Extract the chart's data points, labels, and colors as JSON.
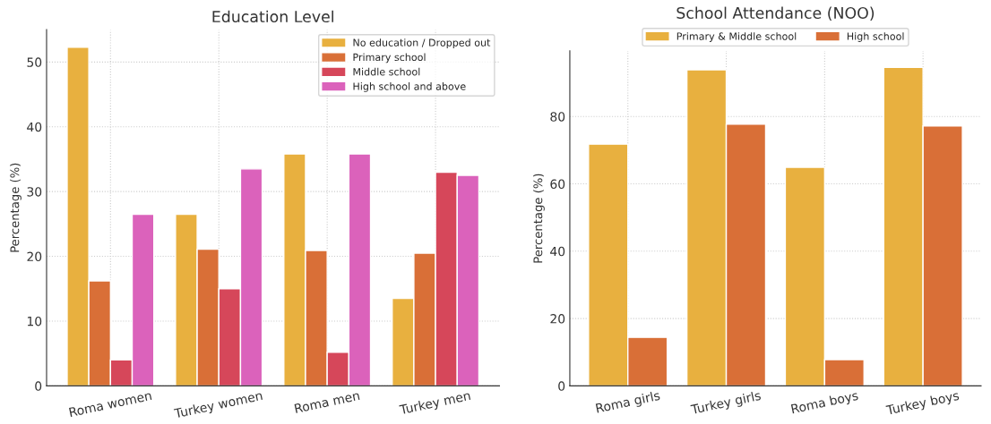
{
  "chart_data": [
    {
      "type": "bar",
      "title": "Education Level",
      "ylabel": "Percentage (%)",
      "categories": [
        "Roma women",
        "Turkey women",
        "Roma men",
        "Turkey men"
      ],
      "series": [
        {
          "name": "No education / Dropped out",
          "color": "#e8b03f",
          "values": [
            52.3,
            26.5,
            35.8,
            13.5
          ]
        },
        {
          "name": "Primary school",
          "color": "#d96f37",
          "values": [
            16.2,
            21.1,
            20.9,
            20.5
          ]
        },
        {
          "name": "Middle school",
          "color": "#d6475a",
          "values": [
            4.0,
            15.0,
            5.2,
            33.0
          ]
        },
        {
          "name": "High school and above",
          "color": "#db62bb",
          "values": [
            26.5,
            33.5,
            35.8,
            32.5
          ]
        }
      ],
      "ylim": [
        0,
        55
      ],
      "yticks": [
        0,
        10,
        20,
        30,
        40,
        50
      ],
      "grid": true,
      "legend": "top right"
    },
    {
      "type": "bar",
      "title": "School Attendance (NOO)",
      "ylabel": "Percentage (%)",
      "categories": [
        "Roma girls",
        "Turkey girls",
        "Roma boys",
        "Turkey boys"
      ],
      "series": [
        {
          "name": "Primary & Middle school",
          "color": "#e8b03f",
          "values": [
            71.8,
            93.9,
            64.9,
            94.6
          ]
        },
        {
          "name": "High school",
          "color": "#d96f37",
          "values": [
            14.4,
            77.7,
            7.8,
            77.2
          ]
        }
      ],
      "ylim": [
        0,
        99.5
      ],
      "yticks": [
        0,
        20,
        40,
        60,
        80
      ],
      "grid": true,
      "legend": "top"
    }
  ]
}
